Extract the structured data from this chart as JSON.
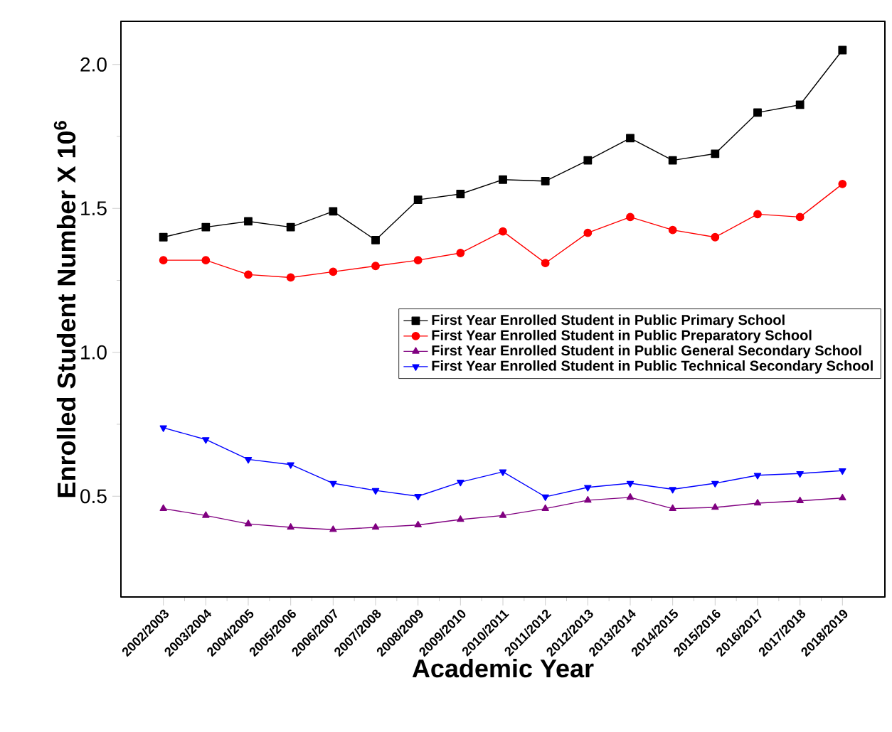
{
  "chart_data": {
    "type": "line",
    "xlabel": "Academic Year",
    "ylabel": "Enrolled Student Number X 10$^{6}$",
    "categories": [
      "2002/2003",
      "2003/2004",
      "2004/2005",
      "2005/2006",
      "2006/2007",
      "2007/2008",
      "2008/2009",
      "2009/2010",
      "2010/2011",
      "2011/2012",
      "2012/2013",
      "2013/2014",
      "2014/2015",
      "2015/2016",
      "2016/2017",
      "2017/2018",
      "2018/2019"
    ],
    "series": [
      {
        "name": "First Year Enrolled Student in Public Primary School",
        "color": "#000000",
        "marker": "square",
        "values": [
          1.4,
          1.435,
          1.455,
          1.435,
          1.49,
          1.39,
          1.53,
          1.55,
          1.6,
          1.595,
          1.667,
          1.744,
          1.667,
          1.69,
          1.833,
          1.86,
          2.05
        ]
      },
      {
        "name": "First Year Enrolled Student in Public Preparatory School",
        "color": "#ff0000",
        "marker": "circle",
        "values": [
          1.32,
          1.32,
          1.27,
          1.26,
          1.28,
          1.3,
          1.32,
          1.345,
          1.42,
          1.31,
          1.415,
          1.47,
          1.425,
          1.4,
          1.48,
          1.47,
          1.585
        ]
      },
      {
        "name": "First Year Enrolled Student in Public General Secondary School",
        "color": "#800080",
        "marker": "triangle",
        "values": [
          0.457,
          0.433,
          0.404,
          0.392,
          0.384,
          0.392,
          0.4,
          0.419,
          0.433,
          0.457,
          0.486,
          0.496,
          0.457,
          0.461,
          0.476,
          0.484,
          0.494
        ]
      },
      {
        "name": "First Year Enrolled Student in Public Technical Secondary School",
        "color": "#0000ff",
        "marker": "triangle-down",
        "values": [
          0.738,
          0.697,
          0.628,
          0.61,
          0.545,
          0.52,
          0.5,
          0.549,
          0.585,
          0.498,
          0.531,
          0.545,
          0.524,
          0.545,
          0.573,
          0.579,
          0.589
        ]
      }
    ],
    "ylim": [
      0.15,
      2.15
    ],
    "yticks": [
      0.5,
      {
        "value": 1,
        "label": "1.0"
      },
      1.5,
      {
        "value": 2,
        "label": "2.0"
      }
    ],
    "grid": false,
    "legend": "right",
    "line_style": "solid"
  }
}
